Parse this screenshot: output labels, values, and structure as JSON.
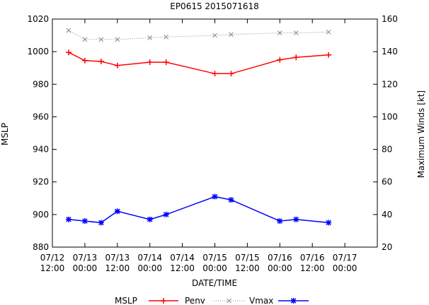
{
  "chart_data": {
    "type": "line",
    "title": "EP0615 2015071618",
    "xlabel": "DATE/TIME",
    "ylabel": "MSLP",
    "y2label": "Maximum Winds [kt]",
    "ylim": [
      880,
      1020
    ],
    "y2lim": [
      20,
      160
    ],
    "yticks": [
      880,
      900,
      920,
      940,
      960,
      980,
      1000,
      1020
    ],
    "y2ticks": [
      20,
      40,
      60,
      80,
      100,
      120,
      140,
      160
    ],
    "xlim_hours": [
      0,
      120
    ],
    "xticks": [
      {
        "hour": 0,
        "date": "07/12",
        "time": "12:00"
      },
      {
        "hour": 12,
        "date": "07/13",
        "time": "00:00"
      },
      {
        "hour": 24,
        "date": "07/13",
        "time": "12:00"
      },
      {
        "hour": 36,
        "date": "07/14",
        "time": "00:00"
      },
      {
        "hour": 48,
        "date": "07/14",
        "time": "12:00"
      },
      {
        "hour": 60,
        "date": "07/15",
        "time": "00:00"
      },
      {
        "hour": 72,
        "date": "07/15",
        "time": "12:00"
      },
      {
        "hour": 84,
        "date": "07/16",
        "time": "00:00"
      },
      {
        "hour": 96,
        "date": "07/16",
        "time": "12:00"
      },
      {
        "hour": 108,
        "date": "07/17",
        "time": "00:00"
      }
    ],
    "legend": {
      "position": "bottom",
      "entries": [
        "MSLP",
        "Penv",
        "Vmax"
      ]
    },
    "series": [
      {
        "name": "Penv",
        "axis": "y",
        "color": "#ff0000",
        "style": "solid",
        "marker": "plus",
        "x": [
          6,
          12,
          18,
          24,
          36,
          42,
          60,
          66,
          84,
          90,
          102
        ],
        "values": [
          999.5,
          994.5,
          994,
          991.5,
          993.5,
          993.5,
          986.5,
          986.5,
          995,
          996.5,
          998
        ]
      },
      {
        "name": "Vmax",
        "axis": "y2",
        "color": "#888888",
        "style": "dotted",
        "marker": "cross",
        "x": [
          6,
          12,
          18,
          24,
          36,
          42,
          60,
          66,
          84,
          90,
          102
        ],
        "values": [
          153,
          147.5,
          147.5,
          147.5,
          148.5,
          149,
          150,
          150.5,
          151.5,
          151.5,
          152
        ]
      },
      {
        "name": "MSLP",
        "axis": "y",
        "color": "#0000ff",
        "style": "solid",
        "marker": "star",
        "x": [
          6,
          12,
          18,
          24,
          36,
          42,
          60,
          66,
          84,
          90,
          102
        ],
        "values": [
          897,
          896,
          895,
          902,
          897,
          900,
          911,
          909,
          896,
          897,
          895
        ]
      }
    ]
  }
}
